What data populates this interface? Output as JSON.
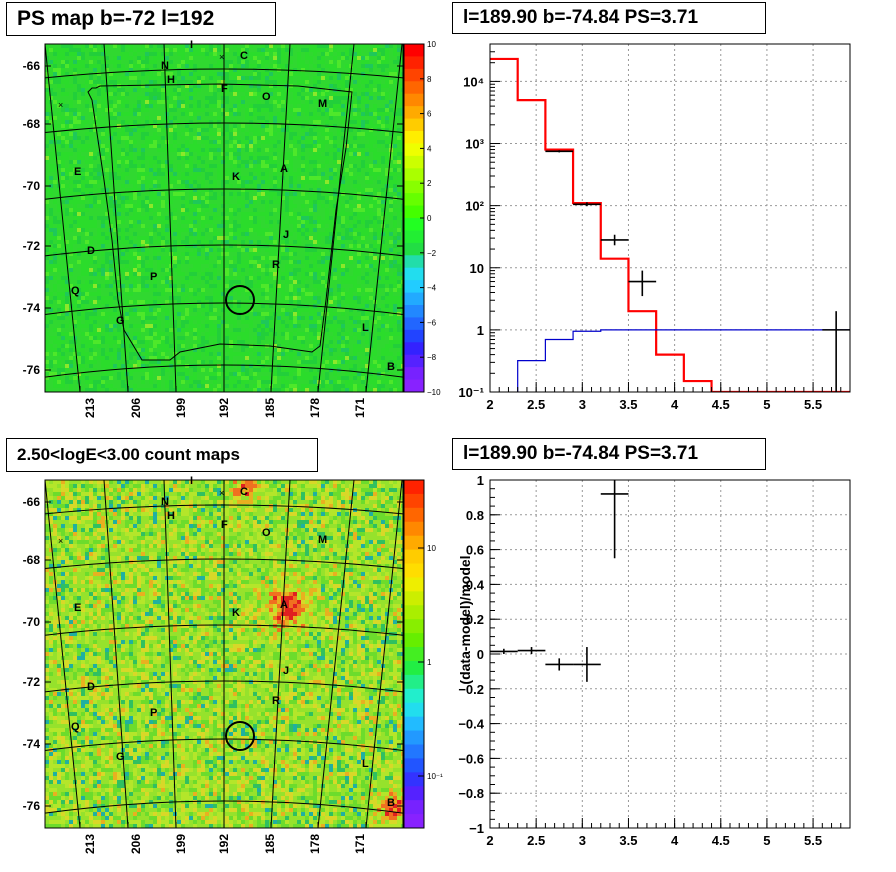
{
  "panels": {
    "top_left": {
      "title": "PS map b=-72 l=192",
      "y_ticks": [
        "-66",
        "-68",
        "-70",
        "-72",
        "-74",
        "-76"
      ],
      "x_ticks": [
        "213",
        "206",
        "199",
        "192",
        "185",
        "178",
        "171"
      ],
      "colorbar_ticks": [
        "10",
        "8",
        "6",
        "4",
        "2",
        "0",
        "−2",
        "−4",
        "−6",
        "−8",
        "−10"
      ],
      "sources": [
        "I",
        "C",
        "N",
        "H",
        "F",
        "O",
        "M",
        "E",
        "K",
        "A",
        "D",
        "J",
        "R",
        "P",
        "Q",
        "G",
        "L",
        "B"
      ]
    },
    "top_right": {
      "title": "l=189.90 b=-74.84 PS=3.71"
    },
    "bottom_left": {
      "title": "2.50<logE<3.00 count maps",
      "y_ticks": [
        "-66",
        "-68",
        "-70",
        "-72",
        "-74",
        "-76"
      ],
      "x_ticks": [
        "213",
        "206",
        "199",
        "192",
        "185",
        "178",
        "171"
      ],
      "colorbar_ticks": [
        "10",
        "1",
        "10⁻¹"
      ],
      "sources": [
        "I",
        "C",
        "N",
        "H",
        "F",
        "O",
        "M",
        "E",
        "K",
        "A",
        "D",
        "J",
        "R",
        "P",
        "Q",
        "G",
        "L",
        "B"
      ]
    },
    "bottom_right": {
      "title": "l=189.90 b=-74.84 PS=3.71",
      "ylabel": "(data-model)/model"
    }
  },
  "colors": {
    "model_red": "#ff0000",
    "model_blue": "#0000cc",
    "data": "#000000",
    "map_green": "#22dd22",
    "grid": "#999999"
  },
  "chart_data": [
    {
      "type": "heatmap",
      "panel": "top_left",
      "title": "PS map b=-72 l=192",
      "xlabel": "",
      "ylabel": "",
      "x_ticks": [
        213,
        206,
        199,
        192,
        185,
        178,
        171
      ],
      "y_ticks": [
        -66,
        -68,
        -70,
        -72,
        -74,
        -76
      ],
      "zlim": [
        -10,
        10
      ],
      "grid": true
    },
    {
      "type": "line",
      "panel": "top_right",
      "title": "l=189.90 b=-74.84 PS=3.71",
      "xlabel": "",
      "ylabel": "",
      "xlim": [
        2,
        5.9
      ],
      "ylim": [
        0.1,
        40000
      ],
      "yscale": "log",
      "x_ticks": [
        2,
        2.5,
        3,
        3.5,
        4,
        4.5,
        5,
        5.5
      ],
      "y_ticks": [
        "10⁻¹",
        "1",
        "10",
        "10²",
        "10³",
        "10⁴"
      ],
      "grid": true,
      "series": [
        {
          "style": "step",
          "color": "#ff0000",
          "edges": [
            2.0,
            2.3,
            2.6,
            2.9,
            3.2,
            3.5,
            3.8,
            4.1,
            4.4,
            5.9
          ],
          "values": [
            23000,
            5000,
            800,
            110,
            14,
            2,
            0.4,
            0.15,
            0.1
          ]
        },
        {
          "style": "step",
          "color": "#0000cc",
          "edges": [
            2.3,
            2.6,
            2.9,
            3.2,
            5.9
          ],
          "values": [
            0.32,
            0.7,
            0.95,
            1.0
          ]
        },
        {
          "style": "errorbar",
          "color": "#000000",
          "points": [
            {
              "x": 2.75,
              "xerr": 0.15,
              "y": 750,
              "ylo": 720,
              "yhi": 780
            },
            {
              "x": 3.05,
              "xerr": 0.15,
              "y": 105,
              "ylo": 98,
              "yhi": 113
            },
            {
              "x": 3.35,
              "xerr": 0.15,
              "y": 28,
              "ylo": 23,
              "yhi": 34
            },
            {
              "x": 3.65,
              "xerr": 0.15,
              "y": 6,
              "ylo": 3.5,
              "yhi": 9
            },
            {
              "x": 5.75,
              "xerr": 0.15,
              "y": 1,
              "ylo": 0.1,
              "yhi": 2
            }
          ]
        }
      ]
    },
    {
      "type": "heatmap",
      "panel": "bottom_left",
      "title": "2.50<logE<3.00 count maps",
      "xlabel": "",
      "ylabel": "",
      "x_ticks": [
        213,
        206,
        199,
        192,
        185,
        178,
        171
      ],
      "y_ticks": [
        -66,
        -68,
        -70,
        -72,
        -74,
        -76
      ],
      "zscale": "log",
      "grid": true
    },
    {
      "type": "scatter",
      "panel": "bottom_right",
      "title": "l=189.90 b=-74.84 PS=3.71",
      "xlabel": "",
      "ylabel": "(data-model)/model",
      "xlim": [
        2,
        5.9
      ],
      "ylim": [
        -1,
        1
      ],
      "x_ticks": [
        2,
        2.5,
        3,
        3.5,
        4,
        4.5,
        5,
        5.5
      ],
      "y_ticks": [
        -1,
        -0.8,
        -0.6,
        -0.4,
        -0.2,
        0,
        0.2,
        0.4,
        0.6,
        0.8,
        1
      ],
      "grid": true,
      "points": [
        {
          "x": 2.15,
          "xerr": 0.15,
          "y": 0.015,
          "yerr": 0.015
        },
        {
          "x": 2.45,
          "xerr": 0.15,
          "y": 0.02,
          "yerr": 0.02
        },
        {
          "x": 2.75,
          "xerr": 0.15,
          "y": -0.06,
          "yerr": 0.035
        },
        {
          "x": 3.05,
          "xerr": 0.15,
          "y": -0.06,
          "yerr": 0.1
        },
        {
          "x": 3.35,
          "xerr": 0.15,
          "y": 0.92,
          "yerr": 0.37
        }
      ]
    }
  ]
}
